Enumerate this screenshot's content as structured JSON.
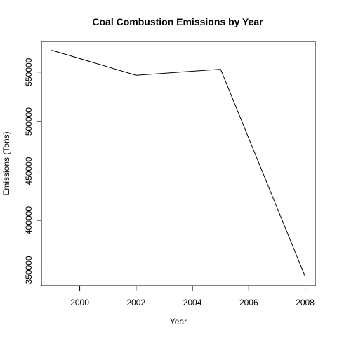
{
  "chart_data": {
    "type": "line",
    "title": "Coal Combustion Emissions by Year",
    "xlabel": "Year",
    "ylabel": "Emissions (Tons)",
    "x": [
      1999,
      2002,
      2005,
      2008
    ],
    "series": [
      {
        "values": [
          572126,
          546789,
          552881,
          343432
        ]
      }
    ],
    "xlim": [
      1998.64,
      2008.36
    ],
    "ylim": [
      334000,
      581000
    ],
    "xticks": [
      2000,
      2002,
      2004,
      2006,
      2008
    ],
    "yticks": [
      350000,
      400000,
      450000,
      500000,
      550000
    ],
    "xtick_labels": [
      "2000",
      "2002",
      "2004",
      "2006",
      "2008"
    ],
    "ytick_labels": [
      "350000",
      "400000",
      "450000",
      "500000",
      "550000"
    ],
    "line_color": "#000000",
    "grid": false,
    "legend": "none"
  }
}
